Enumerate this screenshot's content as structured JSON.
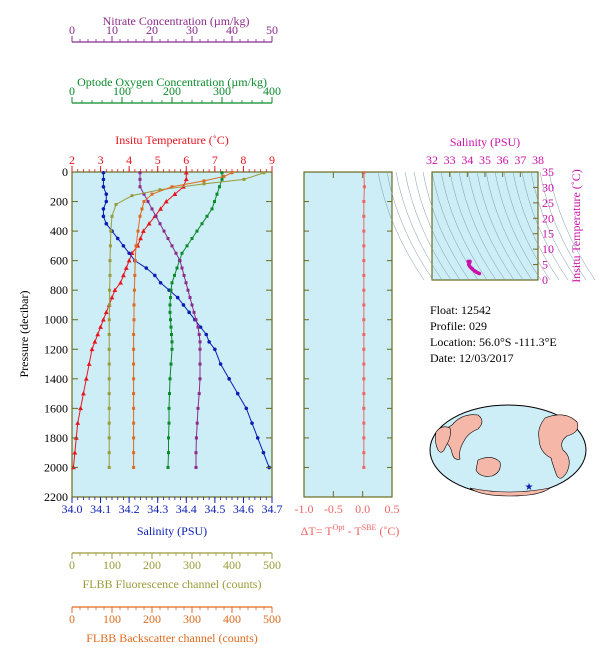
{
  "colors": {
    "nitrate": "#8b2a8b",
    "oxygen": "#0a8a2a",
    "temperature": "#e8141e",
    "salinity": "#0a1eb4",
    "fluorescence": "#9a9a3a",
    "backscatter": "#e06a1e",
    "dt": "#f06464",
    "ts": "#cc11aa",
    "panel_bg": "#cdeef7",
    "frame": "#6b6b1e"
  },
  "info": {
    "float": "Float:  12542",
    "profile": "Profile:  029",
    "location": "Location:  56.0°S  -111.3°E",
    "date": "Date:  12/03/2017"
  },
  "chart_data": [
    {
      "type": "line",
      "id": "main_profile",
      "ylabel": "Pressure (decibar)",
      "ylim": [
        2200,
        0
      ],
      "yticks": [
        "0",
        "200",
        "400",
        "600",
        "800",
        "1000",
        "1200",
        "1400",
        "1600",
        "1800",
        "2000",
        "2200"
      ],
      "grid": false,
      "axes": [
        {
          "key": "nitrate",
          "label": "Nitrate Concentration (µm/kg)",
          "range": [
            0,
            50
          ],
          "ticks": [
            "0",
            "10",
            "20",
            "30",
            "40",
            "50"
          ],
          "position": "top"
        },
        {
          "key": "oxygen",
          "label": "Optode Oxygen Concentration (µm/kg)",
          "range": [
            0,
            400
          ],
          "ticks": [
            "0",
            "100",
            "200",
            "300",
            "400"
          ],
          "position": "top"
        },
        {
          "key": "temperature",
          "label": "Insitu Temperature (˚C)",
          "range": [
            2,
            9
          ],
          "ticks": [
            "2",
            "3",
            "4",
            "5",
            "6",
            "7",
            "8",
            "9"
          ],
          "position": "top"
        },
        {
          "key": "salinity",
          "label": "Salinity (PSU)",
          "range": [
            34.0,
            34.7
          ],
          "ticks": [
            "34.0",
            "34.1",
            "34.2",
            "34.3",
            "34.4",
            "34.5",
            "34.6",
            "34.7"
          ],
          "position": "bottom"
        },
        {
          "key": "fluorescence",
          "label": "FLBB Fluorescence channel (counts)",
          "range": [
            0,
            500
          ],
          "ticks": [
            "0",
            "100",
            "200",
            "300",
            "400",
            "500"
          ],
          "position": "bottom"
        },
        {
          "key": "backscatter",
          "label": "FLBB Backscatter channel (counts)",
          "range": [
            0,
            500
          ],
          "ticks": [
            "0",
            "100",
            "200",
            "300",
            "400",
            "500"
          ],
          "position": "bottom"
        }
      ],
      "series": [
        {
          "key": "temperature",
          "marker": "triangle",
          "points": [
            [
              6.0,
              5
            ],
            [
              6.0,
              50
            ],
            [
              5.9,
              100
            ],
            [
              5.6,
              150
            ],
            [
              5.3,
              200
            ],
            [
              5.1,
              250
            ],
            [
              4.9,
              300
            ],
            [
              4.7,
              350
            ],
            [
              4.5,
              400
            ],
            [
              4.4,
              450
            ],
            [
              4.3,
              500
            ],
            [
              4.1,
              550
            ],
            [
              4.0,
              600
            ],
            [
              3.9,
              650
            ],
            [
              3.8,
              700
            ],
            [
              3.7,
              750
            ],
            [
              3.5,
              800
            ],
            [
              3.4,
              850
            ],
            [
              3.3,
              900
            ],
            [
              3.2,
              950
            ],
            [
              3.1,
              1000
            ],
            [
              3.0,
              1050
            ],
            [
              2.9,
              1100
            ],
            [
              2.8,
              1150
            ],
            [
              2.7,
              1200
            ],
            [
              2.6,
              1300
            ],
            [
              2.5,
              1400
            ],
            [
              2.4,
              1500
            ],
            [
              2.3,
              1600
            ],
            [
              2.2,
              1700
            ],
            [
              2.15,
              1800
            ],
            [
              2.1,
              1900
            ],
            [
              2.05,
              2000
            ]
          ]
        },
        {
          "key": "salinity",
          "marker": "circle",
          "points": [
            [
              34.11,
              5
            ],
            [
              34.11,
              50
            ],
            [
              34.11,
              100
            ],
            [
              34.12,
              150
            ],
            [
              34.12,
              200
            ],
            [
              34.11,
              250
            ],
            [
              34.11,
              300
            ],
            [
              34.12,
              350
            ],
            [
              34.14,
              400
            ],
            [
              34.16,
              450
            ],
            [
              34.18,
              500
            ],
            [
              34.2,
              550
            ],
            [
              34.22,
              600
            ],
            [
              34.26,
              650
            ],
            [
              34.29,
              700
            ],
            [
              34.31,
              750
            ],
            [
              34.34,
              800
            ],
            [
              34.37,
              850
            ],
            [
              34.39,
              900
            ],
            [
              34.41,
              950
            ],
            [
              34.43,
              1000
            ],
            [
              34.45,
              1050
            ],
            [
              34.47,
              1100
            ],
            [
              34.48,
              1150
            ],
            [
              34.5,
              1200
            ],
            [
              34.52,
              1300
            ],
            [
              34.55,
              1400
            ],
            [
              34.58,
              1500
            ],
            [
              34.61,
              1600
            ],
            [
              34.63,
              1700
            ],
            [
              34.65,
              1800
            ],
            [
              34.67,
              1900
            ],
            [
              34.69,
              2000
            ]
          ]
        },
        {
          "key": "oxygen",
          "marker": "square",
          "points": [
            [
              300,
              5
            ],
            [
              300,
              50
            ],
            [
              295,
              100
            ],
            [
              290,
              150
            ],
            [
              285,
              200
            ],
            [
              280,
              250
            ],
            [
              270,
              300
            ],
            [
              260,
              350
            ],
            [
              250,
              400
            ],
            [
              240,
              450
            ],
            [
              230,
              500
            ],
            [
              220,
              550
            ],
            [
              215,
              600
            ],
            [
              210,
              650
            ],
            [
              205,
              700
            ],
            [
              200,
              750
            ],
            [
              198,
              800
            ],
            [
              197,
              850
            ],
            [
              196,
              900
            ],
            [
              196,
              950
            ],
            [
              197,
              1000
            ],
            [
              198,
              1050
            ],
            [
              199,
              1100
            ],
            [
              200,
              1150
            ],
            [
              200,
              1200
            ],
            [
              198,
              1300
            ],
            [
              196,
              1400
            ],
            [
              195,
              1500
            ],
            [
              194,
              1600
            ],
            [
              194,
              1700
            ],
            [
              193,
              1800
            ],
            [
              193,
              1900
            ],
            [
              192,
              2000
            ]
          ]
        },
        {
          "key": "nitrate",
          "marker": "square",
          "points": [
            [
              17,
              5
            ],
            [
              17,
              50
            ],
            [
              17,
              100
            ],
            [
              18,
              150
            ],
            [
              19,
              200
            ],
            [
              20,
              250
            ],
            [
              21,
              300
            ],
            [
              22,
              350
            ],
            [
              23,
              400
            ],
            [
              24,
              450
            ],
            [
              25,
              500
            ],
            [
              26,
              550
            ],
            [
              27,
              600
            ],
            [
              27.5,
              650
            ],
            [
              28,
              700
            ],
            [
              28.5,
              750
            ],
            [
              29,
              800
            ],
            [
              29.5,
              850
            ],
            [
              30,
              900
            ],
            [
              30.5,
              950
            ],
            [
              31,
              1000
            ],
            [
              31.5,
              1050
            ],
            [
              31.8,
              1100
            ],
            [
              32,
              1150
            ],
            [
              32,
              1200
            ],
            [
              32,
              1300
            ],
            [
              32,
              1400
            ],
            [
              31.8,
              1500
            ],
            [
              31.5,
              1600
            ],
            [
              31.3,
              1700
            ],
            [
              31.1,
              1800
            ],
            [
              31,
              1900
            ],
            [
              31,
              2000
            ]
          ]
        },
        {
          "key": "fluorescence",
          "marker": "square",
          "points": [
            [
              480,
              5
            ],
            [
              430,
              50
            ],
            [
              330,
              80
            ],
            [
              220,
              120
            ],
            [
              150,
              160
            ],
            [
              110,
              220
            ],
            [
              100,
              300
            ],
            [
              97,
              400
            ],
            [
              96,
              500
            ],
            [
              95,
              600
            ],
            [
              95,
              700
            ],
            [
              94,
              800
            ],
            [
              94,
              900
            ],
            [
              93,
              1000
            ],
            [
              93,
              1100
            ],
            [
              93,
              1200
            ],
            [
              93,
              1300
            ],
            [
              93,
              1400
            ],
            [
              93,
              1500
            ],
            [
              93,
              1600
            ],
            [
              93,
              1700
            ],
            [
              93,
              1800
            ],
            [
              93,
              1900
            ],
            [
              93,
              2000
            ]
          ]
        },
        {
          "key": "backscatter",
          "marker": "square",
          "points": [
            [
              400,
              5
            ],
            [
              380,
              30
            ],
            [
              330,
              60
            ],
            [
              250,
              100
            ],
            [
              200,
              150
            ],
            [
              180,
              200
            ],
            [
              175,
              250
            ],
            [
              170,
              300
            ],
            [
              165,
              400
            ],
            [
              160,
              500
            ],
            [
              158,
              600
            ],
            [
              157,
              700
            ],
            [
              156,
              800
            ],
            [
              155,
              900
            ],
            [
              155,
              1000
            ],
            [
              154,
              1100
            ],
            [
              154,
              1200
            ],
            [
              154,
              1300
            ],
            [
              154,
              1400
            ],
            [
              154,
              1500
            ],
            [
              154,
              1600
            ],
            [
              154,
              1700
            ],
            [
              154,
              1800
            ],
            [
              154,
              1900
            ],
            [
              154,
              2000
            ]
          ]
        }
      ]
    },
    {
      "type": "line",
      "id": "delta_t",
      "xlabel": "ΔT= T^Opt - T^SBE (˚C)",
      "xlim": [
        -1.0,
        0.5
      ],
      "xticks": [
        "-1.0",
        "-0.5",
        "0.0",
        "0.5"
      ],
      "ylim": [
        2200,
        0
      ],
      "series": [
        {
          "key": "dt",
          "points": [
            [
              0.02,
              5
            ],
            [
              0.03,
              100
            ],
            [
              0.02,
              200
            ],
            [
              0.02,
              300
            ],
            [
              0.02,
              400
            ],
            [
              0.02,
              500
            ],
            [
              0.02,
              600
            ],
            [
              0.02,
              700
            ],
            [
              0.02,
              800
            ],
            [
              0.02,
              900
            ],
            [
              0.02,
              1000
            ],
            [
              0.02,
              1100
            ],
            [
              0.02,
              1200
            ],
            [
              0.02,
              1300
            ],
            [
              0.02,
              1400
            ],
            [
              0.02,
              1500
            ],
            [
              0.02,
              1600
            ],
            [
              0.02,
              1700
            ],
            [
              0.02,
              1800
            ],
            [
              0.02,
              1900
            ],
            [
              0.02,
              2000
            ]
          ]
        }
      ]
    },
    {
      "type": "scatter",
      "id": "ts_diagram",
      "title": "Salinity (PSU)",
      "xlim": [
        32,
        38
      ],
      "xticks": [
        "32",
        "33",
        "34",
        "35",
        "36",
        "37",
        "38"
      ],
      "ylabel": "Insitu Temperature (˚C)",
      "ylim": [
        0,
        35
      ],
      "yticks": [
        "0",
        "5",
        "10",
        "15",
        "20",
        "25",
        "30",
        "35"
      ],
      "series": [
        {
          "key": "ts",
          "points": [
            [
              34.15,
              6.0
            ],
            [
              34.12,
              5.5
            ],
            [
              34.13,
              4.5
            ],
            [
              34.2,
              4.0
            ],
            [
              34.3,
              3.5
            ],
            [
              34.4,
              3.0
            ],
            [
              34.5,
              2.6
            ],
            [
              34.6,
              2.3
            ],
            [
              34.68,
              2.1
            ],
            [
              34.05,
              6.0
            ],
            [
              34.08,
              5.0
            ],
            [
              34.25,
              3.8
            ],
            [
              34.45,
              2.8
            ]
          ]
        }
      ]
    }
  ],
  "map": {
    "float_marker": "star"
  }
}
